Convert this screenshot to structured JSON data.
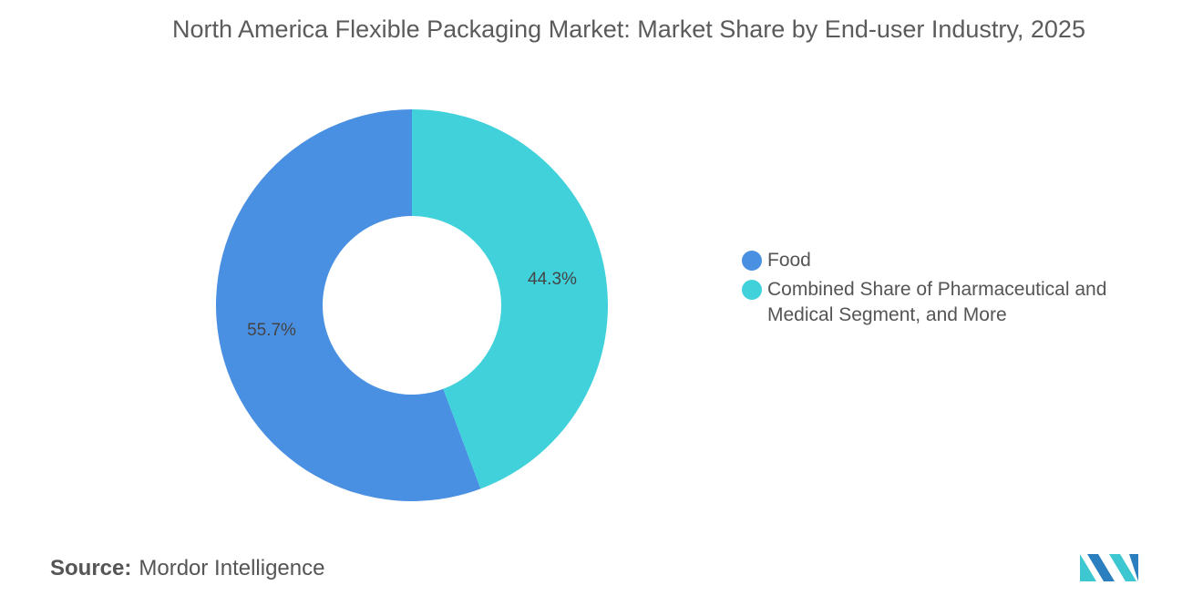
{
  "chart_data": {
    "type": "donut",
    "title": "North America Flexible Packaging Market: Market Share by End-user Industry, 2025",
    "categories": [
      "Food",
      "Combined Share of Pharmaceutical and Medical Segment, and More"
    ],
    "values": [
      55.7,
      44.3
    ],
    "value_labels": [
      "55.7%",
      "44.3%"
    ],
    "colors": [
      "#4a90e2",
      "#40d1db"
    ],
    "legend": "right"
  },
  "source": {
    "label": "Source:",
    "text": "Mordor Intelligence"
  }
}
